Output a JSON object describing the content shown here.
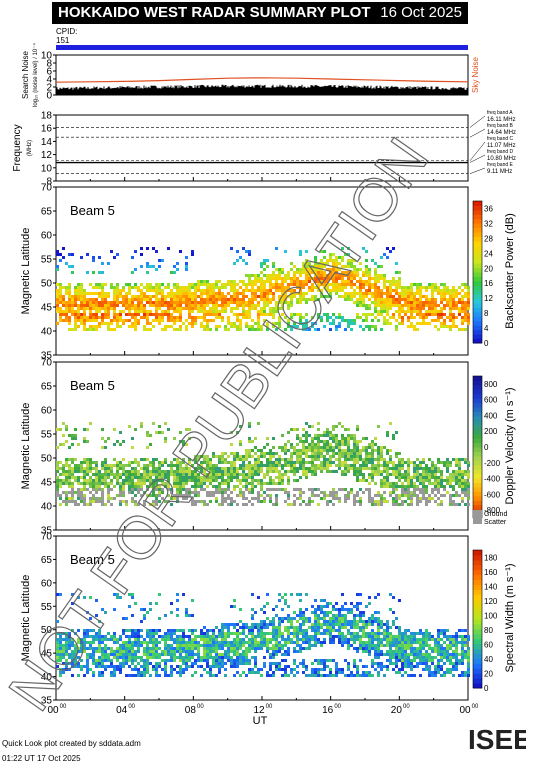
{
  "title": "HOKKAIDO WEST RADAR SUMMARY PLOT",
  "date": "16 Oct 2025",
  "cpid_label": "CPID:",
  "cpid_value": "151",
  "footer_line1": "Quick Look plot created by sddata.adm",
  "footer_line2": "01:22 UT 17 Oct 2025",
  "logo_text": "ISEE",
  "watermark": "NOT FOR PUBLICATION",
  "colors": {
    "cpid_bar": "#2020e0",
    "noise_sky": "#e05020",
    "noise_search": "#000000",
    "ground_scatter": "#999999"
  },
  "chart_data": [
    {
      "type": "line",
      "panel": "noise",
      "ylabel": "Search Noise",
      "ylabel_units": "log₁₀ (noise level) / 10⁻⁴",
      "right_label": "Sky Noise",
      "ylim": [
        0,
        10
      ],
      "yticks": [
        0,
        2,
        4,
        6,
        8,
        10
      ],
      "x": [
        0,
        2,
        4,
        6,
        8,
        10,
        12,
        14,
        16,
        18,
        20,
        22,
        24
      ],
      "series": [
        {
          "name": "Sky Noise",
          "values": [
            3.2,
            3.3,
            3.4,
            3.6,
            3.9,
            4.2,
            4.3,
            4.2,
            4.0,
            3.8,
            3.6,
            3.4,
            3.3
          ]
        },
        {
          "name": "Search Noise",
          "values": [
            1.5,
            1.6,
            1.6,
            1.7,
            1.8,
            1.9,
            2.0,
            2.0,
            1.9,
            1.8,
            1.7,
            1.6,
            1.5
          ]
        }
      ]
    },
    {
      "type": "line",
      "panel": "frequency",
      "ylabel": "Frequency",
      "ylabel_units": "(MHz)",
      "ylim": [
        8,
        18
      ],
      "yticks": [
        8,
        10,
        12,
        14,
        16,
        18
      ],
      "bands": [
        {
          "label": "freq band A",
          "value_text": "16.11 MHz",
          "value": 16.11
        },
        {
          "label": "freq band B",
          "value_text": "14.64 MHz",
          "value": 14.64
        },
        {
          "label": "freq band C",
          "value_text": "11.07 MHz",
          "value": 11.07
        },
        {
          "label": "freq band D",
          "value_text": "10.80 MHz",
          "value": 10.8
        },
        {
          "label": "freq band E",
          "value_text": "9.11 MHz",
          "value": 9.11
        }
      ],
      "series": [
        {
          "values": [
            10.8,
            10.8,
            10.8,
            10.8,
            10.8,
            10.8,
            10.8,
            10.8,
            10.8,
            10.8,
            10.8,
            10.8,
            10.8
          ]
        }
      ]
    },
    {
      "type": "heatmap",
      "panel": "power",
      "beam_label": "Beam  5",
      "ylabel": "Magnetic Latitude",
      "ylim": [
        35,
        70
      ],
      "yticks": [
        35,
        40,
        45,
        50,
        55,
        60,
        65,
        70
      ],
      "colorbar_label": "Backscatter Power (dB)",
      "colorbar_ticks": [
        "0",
        "4",
        "8",
        "12",
        "16",
        "20",
        "24",
        "28",
        "32",
        "36"
      ],
      "colorbar_range": [
        0,
        38
      ]
    },
    {
      "type": "heatmap",
      "panel": "velocity",
      "beam_label": "Beam  5",
      "ylabel": "Magnetic Latitude",
      "ylim": [
        35,
        70
      ],
      "yticks": [
        35,
        40,
        45,
        50,
        55,
        60,
        65,
        70
      ],
      "colorbar_label": "Doppler Velocity (m s⁻¹)",
      "colorbar_ticks": [
        "-800",
        "-600",
        "-400",
        "-200",
        "0",
        "200",
        "400",
        "600",
        "800"
      ],
      "colorbar_range": [
        -900,
        900
      ],
      "ground_label": "Ground",
      "ground_label2": "Scatter"
    },
    {
      "type": "heatmap",
      "panel": "width",
      "beam_label": "Beam  5",
      "ylabel": "Magnetic Latitude",
      "ylim": [
        35,
        70
      ],
      "yticks": [
        35,
        40,
        45,
        50,
        55,
        60,
        65,
        70
      ],
      "colorbar_label": "Spectral Width (m s⁻¹)",
      "colorbar_ticks": [
        "0",
        "20",
        "40",
        "60",
        "80",
        "100",
        "120",
        "140",
        "160",
        "180"
      ],
      "colorbar_range": [
        0,
        190
      ],
      "xlabel": "UT",
      "xticks": [
        "00",
        "04",
        "08",
        "12",
        "16",
        "20",
        "00"
      ],
      "xtick_superscript": "00"
    }
  ]
}
